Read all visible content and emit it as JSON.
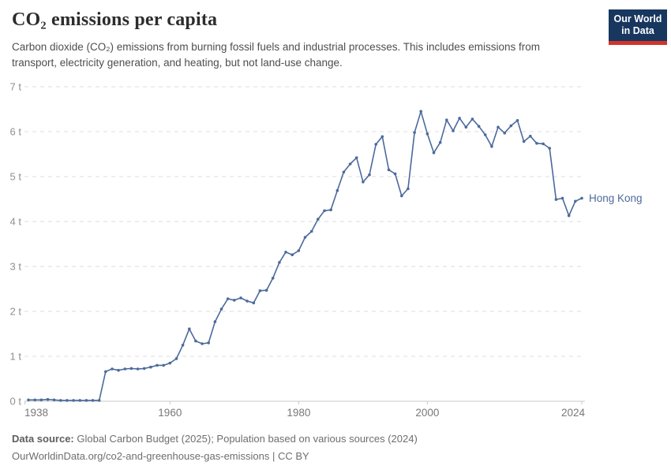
{
  "header": {
    "title": "CO₂ emissions per capita",
    "subtitle": "Carbon dioxide (CO₂) emissions from burning fossil fuels and industrial processes. This includes emissions from transport, electricity generation, and heating, but not land-use change."
  },
  "logo": {
    "line1": "Our World",
    "line2": "in Data",
    "bg_color": "#18375f",
    "bar_color": "#d1342b"
  },
  "chart_data": {
    "type": "line",
    "title": "CO₂ emissions per capita",
    "unit": "t",
    "xlabel": "",
    "ylabel": "",
    "ylim": [
      0,
      7
    ],
    "y_tick_labels": [
      "0 t",
      "1 t",
      "2 t",
      "3 t",
      "4 t",
      "5 t",
      "6 t",
      "7 t"
    ],
    "x_tick_labels": [
      "1938",
      "1960",
      "1980",
      "2000",
      "2024"
    ],
    "grid": "dashed-horizontal",
    "legend_position": "end-of-line-label",
    "series": [
      {
        "name": "Hong Kong",
        "color": "#4C6A9C",
        "x": [
          1938,
          1939,
          1940,
          1941,
          1942,
          1943,
          1944,
          1945,
          1946,
          1947,
          1948,
          1949,
          1950,
          1951,
          1952,
          1953,
          1954,
          1955,
          1956,
          1957,
          1958,
          1959,
          1960,
          1961,
          1962,
          1963,
          1964,
          1965,
          1966,
          1967,
          1968,
          1969,
          1970,
          1971,
          1972,
          1973,
          1974,
          1975,
          1976,
          1977,
          1978,
          1979,
          1980,
          1981,
          1982,
          1983,
          1984,
          1985,
          1986,
          1987,
          1988,
          1989,
          1990,
          1991,
          1992,
          1993,
          1994,
          1995,
          1996,
          1997,
          1998,
          1999,
          2000,
          2001,
          2002,
          2003,
          2004,
          2005,
          2006,
          2007,
          2008,
          2009,
          2010,
          2011,
          2012,
          2013,
          2014,
          2015,
          2016,
          2017,
          2018,
          2019,
          2020,
          2021,
          2022,
          2023,
          2024
        ],
        "values": [
          0.03,
          0.03,
          0.03,
          0.04,
          0.03,
          0.02,
          0.02,
          0.02,
          0.02,
          0.02,
          0.02,
          0.02,
          0.66,
          0.72,
          0.69,
          0.72,
          0.73,
          0.72,
          0.73,
          0.76,
          0.8,
          0.8,
          0.85,
          0.95,
          1.25,
          1.61,
          1.34,
          1.28,
          1.3,
          1.77,
          2.05,
          2.28,
          2.25,
          2.3,
          2.23,
          2.19,
          2.46,
          2.47,
          2.74,
          3.09,
          3.32,
          3.26,
          3.35,
          3.65,
          3.78,
          4.05,
          4.24,
          4.26,
          4.69,
          5.1,
          5.28,
          5.42,
          4.88,
          5.04,
          5.72,
          5.89,
          5.15,
          5.06,
          4.57,
          4.73,
          5.98,
          6.45,
          5.95,
          5.53,
          5.76,
          6.26,
          6.02,
          6.3,
          6.1,
          6.28,
          6.12,
          5.93,
          5.67,
          6.1,
          5.97,
          6.13,
          6.25,
          5.78,
          5.9,
          5.74,
          5.73,
          5.63,
          4.49,
          4.52,
          4.13,
          4.45,
          4.52
        ]
      }
    ]
  },
  "colors": {
    "line": "#4C6A9C",
    "grid": "#dcdcdc",
    "axis": "#c8c8c8",
    "y_label": "#8f8f8f",
    "x_label": "#787878",
    "entity_label": "#4C6A9C"
  },
  "footer": {
    "data_source_label": "Data source:",
    "data_source_text": " Global Carbon Budget (2025); Population based on various sources (2024)",
    "url_line": "OurWorldinData.org/co2-and-greenhouse-gas-emissions | CC BY"
  }
}
